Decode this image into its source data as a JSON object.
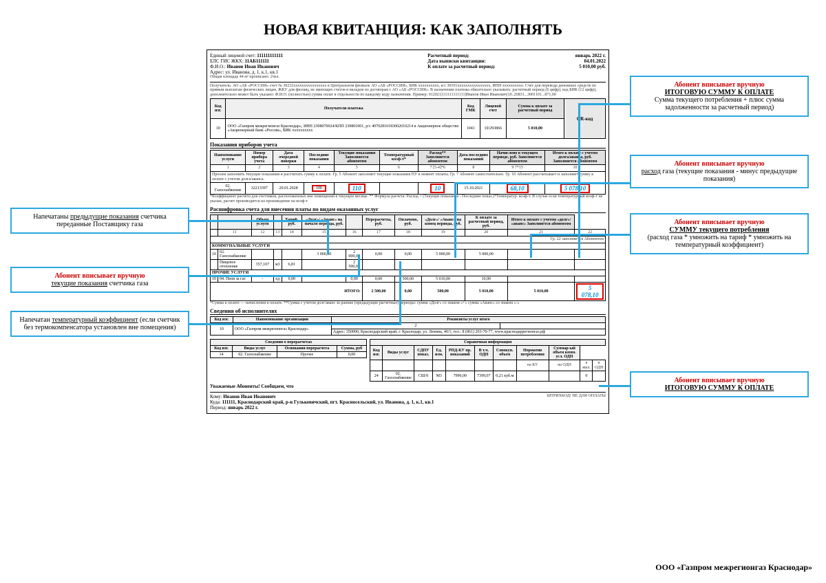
{
  "page_title": "НОВАЯ КВИТАНЦИЯ: КАК ЗАПОЛНЯТЬ",
  "colors": {
    "annot_border": "#2aa8e0",
    "highlight_red": "#d00000",
    "handwritten": "#0090d0"
  },
  "header": {
    "account_label": "Единый лицевой счет:",
    "account": "111111111111",
    "elc_label": "ЕЛС ГИС ЖКХ:",
    "elc": "11АБ111111",
    "fio_label": "Ф.И.О.:",
    "fio": "Иванов Иван Иванович",
    "addr_label": "Адрес:",
    "addr": "ул. Иванова, д. 1, к.1, кв.1",
    "area": "Общая площадь 44 м² прописано: 2чел.",
    "period_label": "Расчетный период:",
    "period": "январь 2022 г.",
    "date_label": "Дата выписки квитанции:",
    "date": "04.01.2022",
    "due_label": "К оплате за расчетный период:",
    "due": "5 010,00 руб."
  },
  "recipient_block": "Получатель: АО «АБ «РОССИЯ» счет № 30232хххххххххххххххх в Центральном филиале АО «АБ «РОССИЯ», БИК хххххххххх, к/с 30101хххххххххххххххх, ИНН хххххххххх. Счет для перевода денежных средств по прямым выплатам физических лицам. ЖКУ для физлиц, не имеющих счетов и вкладов по договорам с АО «АБ «РОССИЯ». В назначении платежа обязательно указывать: расчетный период (6 цифр), код БИК (12 цифр), дополнительно может быть указано: Ф.И.О. (полностью) сумма оплат в отдельности по каждому коду назначения. Пример: 012021|111111111111|Иванов Иван Иванович|10..26831...3001101...871,00",
  "recipients_table": {
    "headers": [
      "Код изг.",
      "Получатели платежа",
      "Код ГМК",
      "Лицевой счет",
      "Сумма к оплате за расчетный период",
      ""
    ],
    "row": {
      "code": "10",
      "name": "ООО «Газпром межрегионгаз Краснодар», ИНН 2308070024/КПП 230801001, р/с 40702810183002010214 в Акционерное общество «Акционерный банк «Россия», БИК хххххххххх",
      "gmk": "1041",
      "acct": "10/293866",
      "amount": "5 010,00",
      "qr": "QR-код"
    }
  },
  "meters_section": {
    "title": "Показания приборов учета",
    "headers": [
      "Наименование услуги",
      "Номер прибора учета",
      "Дата очередной поверки",
      "Последние показания",
      "Текущие показания\nЗаполняется абонентом",
      "Температурный коэф-т*",
      "Расход**\nЗаполняется абонентом",
      "Дата последних показаний",
      "Начислено в текущем периоде, руб.\nЗаполняется абонентом",
      "Итого к оплате с учетом долга/аванса, руб.\nЗаполняется абонентом"
    ],
    "footer_cols": [
      "1",
      "2",
      "3",
      "4",
      "5",
      "6",
      "7 [5-4]*6",
      "8",
      "9  7*15",
      "10"
    ],
    "note": "Просим заполнить текущие показания и рассчитать сумму к оплате. Гр. 5 Абонент заполняет текущие показания ПУ в момент оплаты. Гр. 7 Абонент самостоятельно. Гр. 10 Абонент рассчитывает и заполняет сумму к оплате с учетом долга/аванса.",
    "data_row": {
      "service": "02. Газоснабжение",
      "meter": "32213397",
      "check_date": "20.01.2028",
      "last": "100",
      "current": "110",
      "coef": "",
      "usage": "10",
      "date": "15.10.2021",
      "charged": "68,10",
      "total": "5 078,10"
    },
    "coef_note": "*Коэффициент расчета для счетчиков, расположенных вне помещений в текущем месяце. ** Формула расчета: Расход = (Текущие показания - Последние показ.)*Температур. коэф-т. В случае если температурный коэф-т не указан, расчет производится на произведение на коэф-т"
  },
  "breakdown_section": {
    "title": "Расшифровка счета для внесения платы по видам оказанных услуг",
    "headers": [
      "",
      "",
      "Объем услуги",
      "",
      "Тариф, руб.",
      "«Долг»/ «Аванс» на начало периода, руб.",
      "",
      "Перерасчеты, руб.",
      "Оплачено, руб.",
      "«Долг»/ «Аванс» на конец периода, руб.",
      "К оплате за расчетный период, руб.",
      "Итого к оплате с учетом «долг»/ «аванс»\nЗаполняется абонентом"
    ],
    "col_nums": [
      "",
      "11",
      "12",
      "13",
      "14",
      "15",
      "16",
      "17",
      "18",
      "19",
      "20",
      "21",
      "22"
    ],
    "note22": "Гр. 22 заполняется Абонентом",
    "group1": "КОММУНАЛЬНЫЕ УСЛУГИ",
    "row1": {
      "code": "10",
      "name": "02. Газоснабжение",
      "v3": "",
      "v4": "",
      "v5": "",
      "v6": "3 000,00",
      "v7": "2 000,00",
      "v8": "0,00",
      "v9": "0,00",
      "v10": "5 000,00",
      "v11": "5 000,00",
      "v12": ""
    },
    "row2": {
      "code": "",
      "name": "Пищевое отопление",
      "v3": "357,107",
      "v4": "м3",
      "v5": "6,81",
      "v6": "",
      "v7": "2 500,00",
      "v8": "",
      "v9": "",
      "v10": "",
      "v11": "",
      "v12": ""
    },
    "group2": "ПРОЧИЕ УСЛУГИ",
    "row3": {
      "code": "10",
      "name": "04. Пеня за газ",
      "v3": "-",
      "v4": "ед",
      "v5": "0,00",
      "v6": "",
      "v7": "0,00",
      "v8": "0,00",
      "v9": "500,00",
      "v10": "5 010,00",
      "v11": "10,00",
      "v12": ""
    },
    "total_label": "ИТОГО:",
    "totals": [
      "2 500,00",
      "0,00",
      "500,00",
      "5 010,00",
      "5 010,00"
    ],
    "total_hand": "5 078,10",
    "footnote": "*Сумма к оплате — начисления к оплате. **Сумма с учетом долг/аванс за ранние (предыдущие расчетные) периоды: сумма «Долг» со знаком «+» сумма «Аванс» со знаком «-»"
  },
  "executors": {
    "title": "Сведения об исполнителях",
    "headers": [
      "Код изг.",
      "Наименование организации",
      "Реквизиты услуг итого"
    ],
    "row": {
      "code": "10",
      "name": "ООО «Газпром межрегионгаз Краснодар»",
      "col3": "2",
      "details": "Адрес: 350000, Краснодарский край, г. Краснодар, ул. Ленина, 40/1, тел.: 8 (861) 203-70-77, www.краснодаррегионгаз.рф"
    }
  },
  "recalc": {
    "title": "Сведения о перерасчетах",
    "headers": [
      "Код изг.",
      "Виды услуг",
      "Основания перерасчета",
      "Сумма, руб"
    ],
    "row": {
      "code": "14",
      "name": "02. Газоснабжение",
      "reason": "Прочее",
      "sum": "0,00"
    }
  },
  "reference": {
    "title": "Справочная информация",
    "headers": [
      "Код изг.",
      "Виды услуг",
      "СДПУ показ.",
      "Ед. изм.",
      "РПД-КУ пр. показаний",
      "В т.ч. ОДН",
      "Совокуп. объем",
      "Норматив потребления",
      "Суммар-ый объем комм. усл. ОДН"
    ],
    "sub": [
      "",
      "",
      "",
      "",
      "",
      "",
      "",
      "на КУ",
      "на ОДН",
      "в жил.",
      "в ОДН"
    ],
    "row": {
      "code": "24",
      "name": "02. Газоснабжение",
      "c3": "СШ/0",
      "c4": "М3",
      "c5": "7996,00",
      "c6": "7399,07",
      "c7": "0,21 куб.м",
      "c8": "",
      "c9": "",
      "c10": "0",
      "c11": ""
    }
  },
  "notice": "Уважаемые Абоненты! Сообщаем, что",
  "address_block": {
    "to_label": "Кому:",
    "to": "Иванов Иван Иванович",
    "where_label": "Куда:",
    "where": "111111, Краснодарский край, р-н Гулькевичский, пгт. Красносельский, ул. Иванова, д. 1, к.1, кв.1",
    "period_label": "Период:",
    "period": "январь 2022 г.",
    "barcode": "ШТРИХКОД! НЕ ДЛЯ ОПЛАТЫ"
  },
  "annotations": {
    "left1": {
      "html": "Напечатаны <u>предыдущие показания</u> счетчика переданные Поставщику газа"
    },
    "left2": {
      "title": "Абонент вписывает вручную",
      "html": "<u>текущие показания</u> счетчика газа"
    },
    "left3": {
      "html": "Напечатан <u>температурный коэффициент</u> (если счетчик без термокомпенсатора установлен вне помещения)"
    },
    "right1": {
      "title": "Абонент вписывает вручную",
      "sub": "ИТОГОВУЮ СУММУ К ОПЛАТЕ",
      "html": "Сумма текущего потребления + плюс сумма задолженности за расчетный период)"
    },
    "right2": {
      "title": "Абонент вписывает вручную",
      "html": "<u>расход</u> газа (текущие показания - минус предыдущие показания)"
    },
    "right3": {
      "title": "Абонент вписывает вручную",
      "sub": "СУММУ текущего потребления",
      "html": "(расход газа * умножить на тариф * умножить на температурный коэффициент)"
    },
    "right4": {
      "title": "Абонент вписывает вручную",
      "sub": "ИТОГОВУЮ СУММУ К ОПЛАТЕ"
    }
  },
  "footer": "ООО «Газпром межрегионгаз Краснодар»"
}
